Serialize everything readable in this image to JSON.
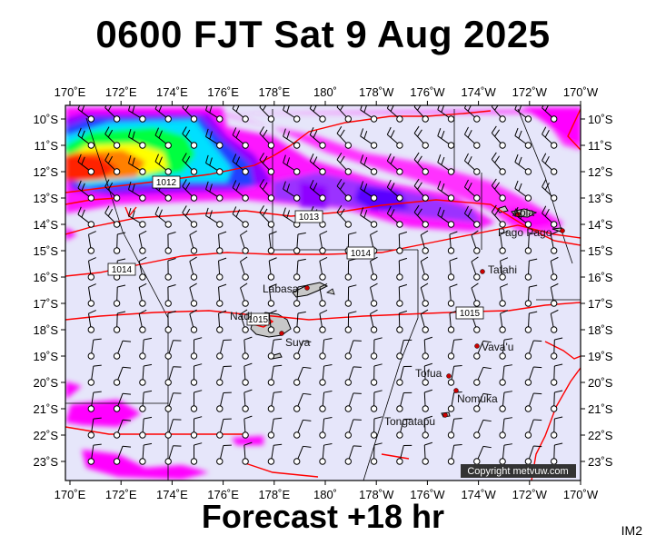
{
  "title": "0600 FJT Sat 9 Aug 2025",
  "footer": "Forecast +18 hr",
  "image_id_label": "IM2",
  "copyright": "Copyright metvuw.com",
  "colors": {
    "ocean": "#e6e6fa",
    "isobar": "#ff0000",
    "land": "#c8c8c8",
    "grid": "#000000",
    "rain_light": "#ff00ff",
    "rain_mid": "#8f00ff",
    "rain_heavy": "#0000ff",
    "rain_cyan": "#00ffff",
    "rain_green": "#00ff00",
    "rain_yellow": "#ffff00",
    "rain_orange": "#ff7f00",
    "rain_red": "#ff2000"
  },
  "map": {
    "lon_labels": [
      "170˚E",
      "172˚E",
      "174˚E",
      "176˚E",
      "178˚E",
      "180˚",
      "178˚W",
      "176˚W",
      "174˚W",
      "172˚W",
      "170˚W"
    ],
    "lat_labels": [
      "10˚S",
      "11˚S",
      "12˚S",
      "13˚S",
      "14˚S",
      "15˚S",
      "16˚S",
      "17˚S",
      "18˚S",
      "19˚S",
      "20˚S",
      "21˚S",
      "22˚S",
      "23˚S"
    ],
    "isobars": [
      "1012",
      "1013",
      "1014",
      "1014",
      "1015",
      "1015"
    ],
    "places": [
      "Apia",
      "Pago Pago",
      "Tafahi",
      "Labasa",
      "Nadi",
      "Suva",
      "Vava'u",
      "Tofua",
      "Nomuka",
      "Tongatapu"
    ]
  }
}
